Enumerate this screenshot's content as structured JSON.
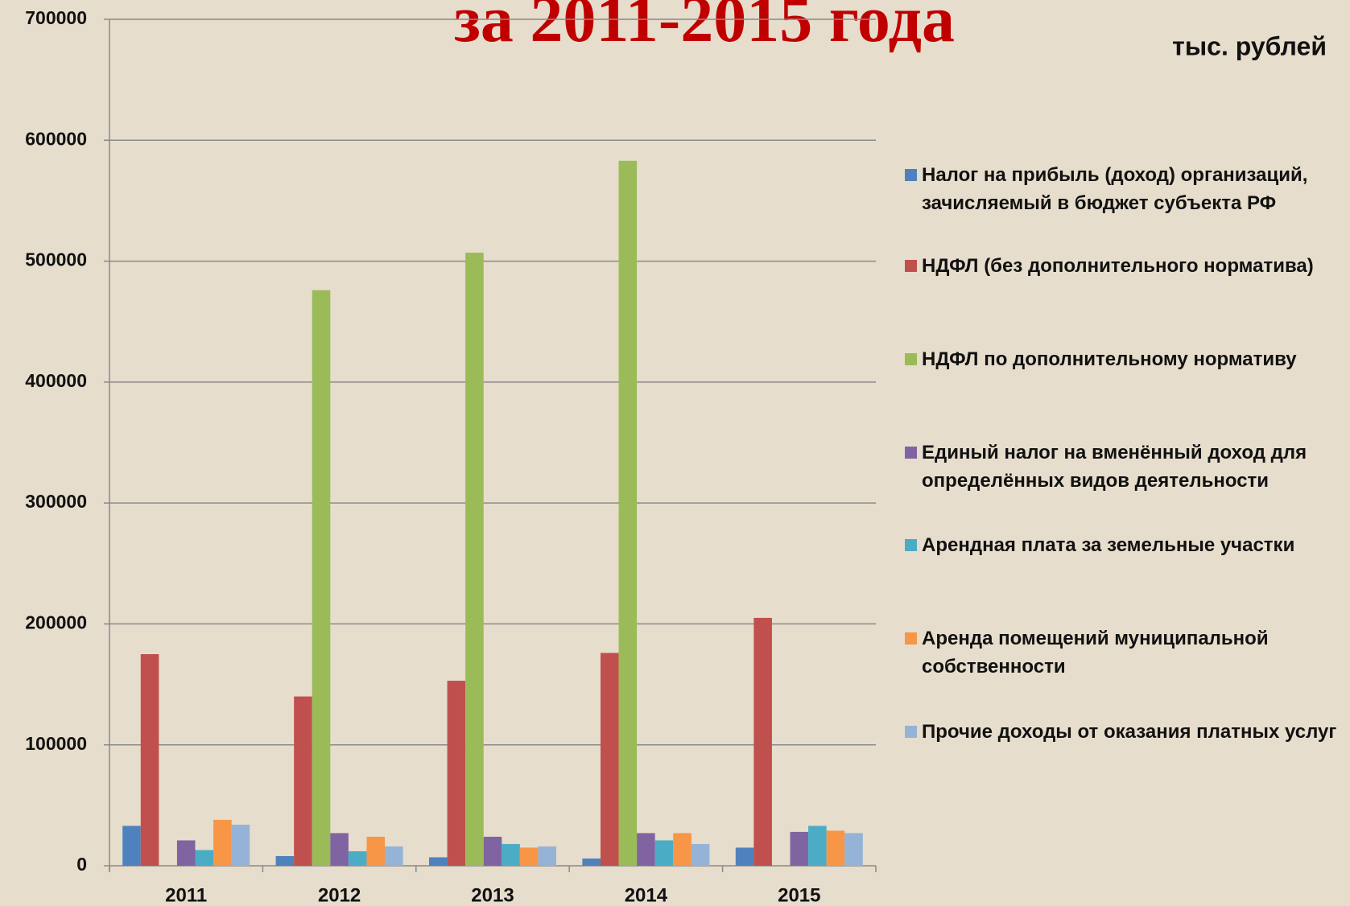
{
  "chart_data": {
    "type": "bar",
    "title": "за 2011-2015 года",
    "subtitle": "тыс. рублей",
    "categories": [
      "2011",
      "2012",
      "2013",
      "2014",
      "2015"
    ],
    "series": [
      {
        "name": "Налог на прибыль (доход) организаций, зачисляемый в бюджет субъекта РФ",
        "color": "#4f81bd",
        "values": [
          33000,
          8000,
          7000,
          6000,
          15000
        ]
      },
      {
        "name": "НДФЛ (без дополнительного норматива)",
        "color": "#c0504d",
        "values": [
          175000,
          140000,
          153000,
          176000,
          205000
        ]
      },
      {
        "name": "НДФЛ по дополнительному нормативу",
        "color": "#9bbb59",
        "values": [
          0,
          476000,
          507000,
          583000,
          0
        ]
      },
      {
        "name": "Единый налог на вменённый доход для определённых видов деятельности",
        "color": "#8064a2",
        "values": [
          21000,
          27000,
          24000,
          27000,
          28000
        ]
      },
      {
        "name": "Арендная плата за земельные участки",
        "color": "#4bacc6",
        "values": [
          13000,
          12000,
          18000,
          21000,
          33000
        ]
      },
      {
        "name": "Аренда помещений муниципальной собственности",
        "color": "#f79646",
        "values": [
          38000,
          24000,
          15000,
          27000,
          29000
        ]
      },
      {
        "name": "Прочие доходы от оказания платных услуг",
        "color": "#95b3d7",
        "values": [
          34000,
          16000,
          16000,
          18000,
          27000
        ]
      }
    ],
    "ylim": [
      0,
      700000
    ],
    "yticks": [
      0,
      100000,
      200000,
      300000,
      400000,
      500000,
      600000,
      700000
    ],
    "grid": true,
    "legend": "right"
  }
}
